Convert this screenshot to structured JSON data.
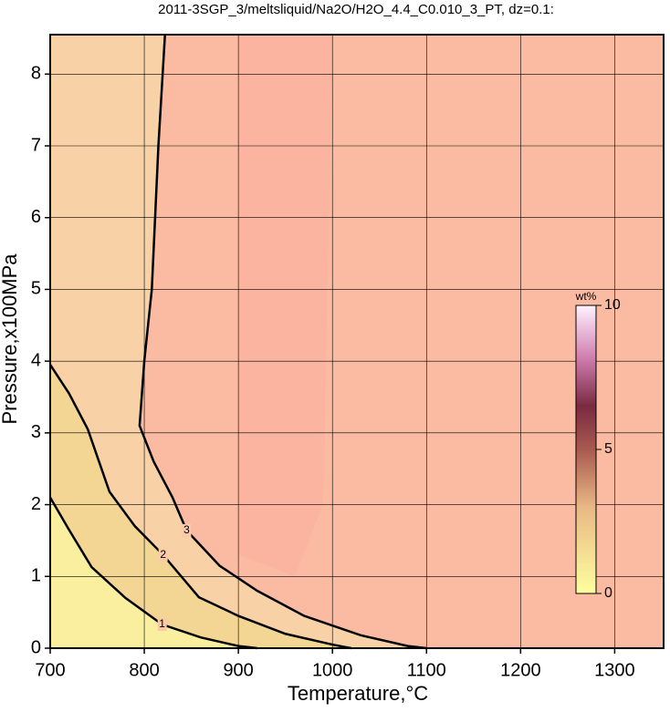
{
  "chart_data": {
    "type": "contour",
    "title": "2011-3SGP_3/meltsliquid/Na2O/H2O_4.4_C0.010_3_PT, dz=0.1:",
    "x_label": "Temperature,°C",
    "y_label": "Pressure,x100MPa",
    "xlim": [
      700,
      1352
    ],
    "ylim": [
      0,
      8.55
    ],
    "xticks": [
      700,
      800,
      900,
      1000,
      1100,
      1200,
      1300
    ],
    "yticks": [
      0,
      1,
      2,
      3,
      4,
      5,
      6,
      7,
      8
    ],
    "grid": true,
    "contours": [
      {
        "level": 3,
        "color": "#f8d2a6",
        "x": [
          822,
          815,
          808,
          800,
          795,
          810,
          830,
          845,
          880,
          920,
          970,
          1030,
          1080,
          1100
        ],
        "y": [
          8.55,
          7,
          5,
          4,
          3.1,
          2.6,
          2.1,
          1.64,
          1.15,
          0.8,
          0.45,
          0.18,
          0.03,
          0
        ]
      },
      {
        "level": 2,
        "color": "#f4d694",
        "x": [
          700,
          720,
          740,
          763,
          790,
          820,
          858,
          900,
          950,
          1000,
          1020
        ],
        "y": [
          3.95,
          3.55,
          3.05,
          2.18,
          1.7,
          1.3,
          0.71,
          0.45,
          0.2,
          0.05,
          0
        ]
      },
      {
        "level": 1,
        "color": "#faef9f",
        "x": [
          700,
          720,
          744,
          780,
          819,
          860,
          900,
          920
        ],
        "y": [
          2.1,
          1.65,
          1.13,
          0.7,
          0.33,
          0.15,
          0.03,
          0
        ]
      }
    ],
    "colorbar": {
      "label": "wt%",
      "lim": [
        0,
        10
      ],
      "ticks": [
        0,
        5,
        10
      ]
    }
  }
}
